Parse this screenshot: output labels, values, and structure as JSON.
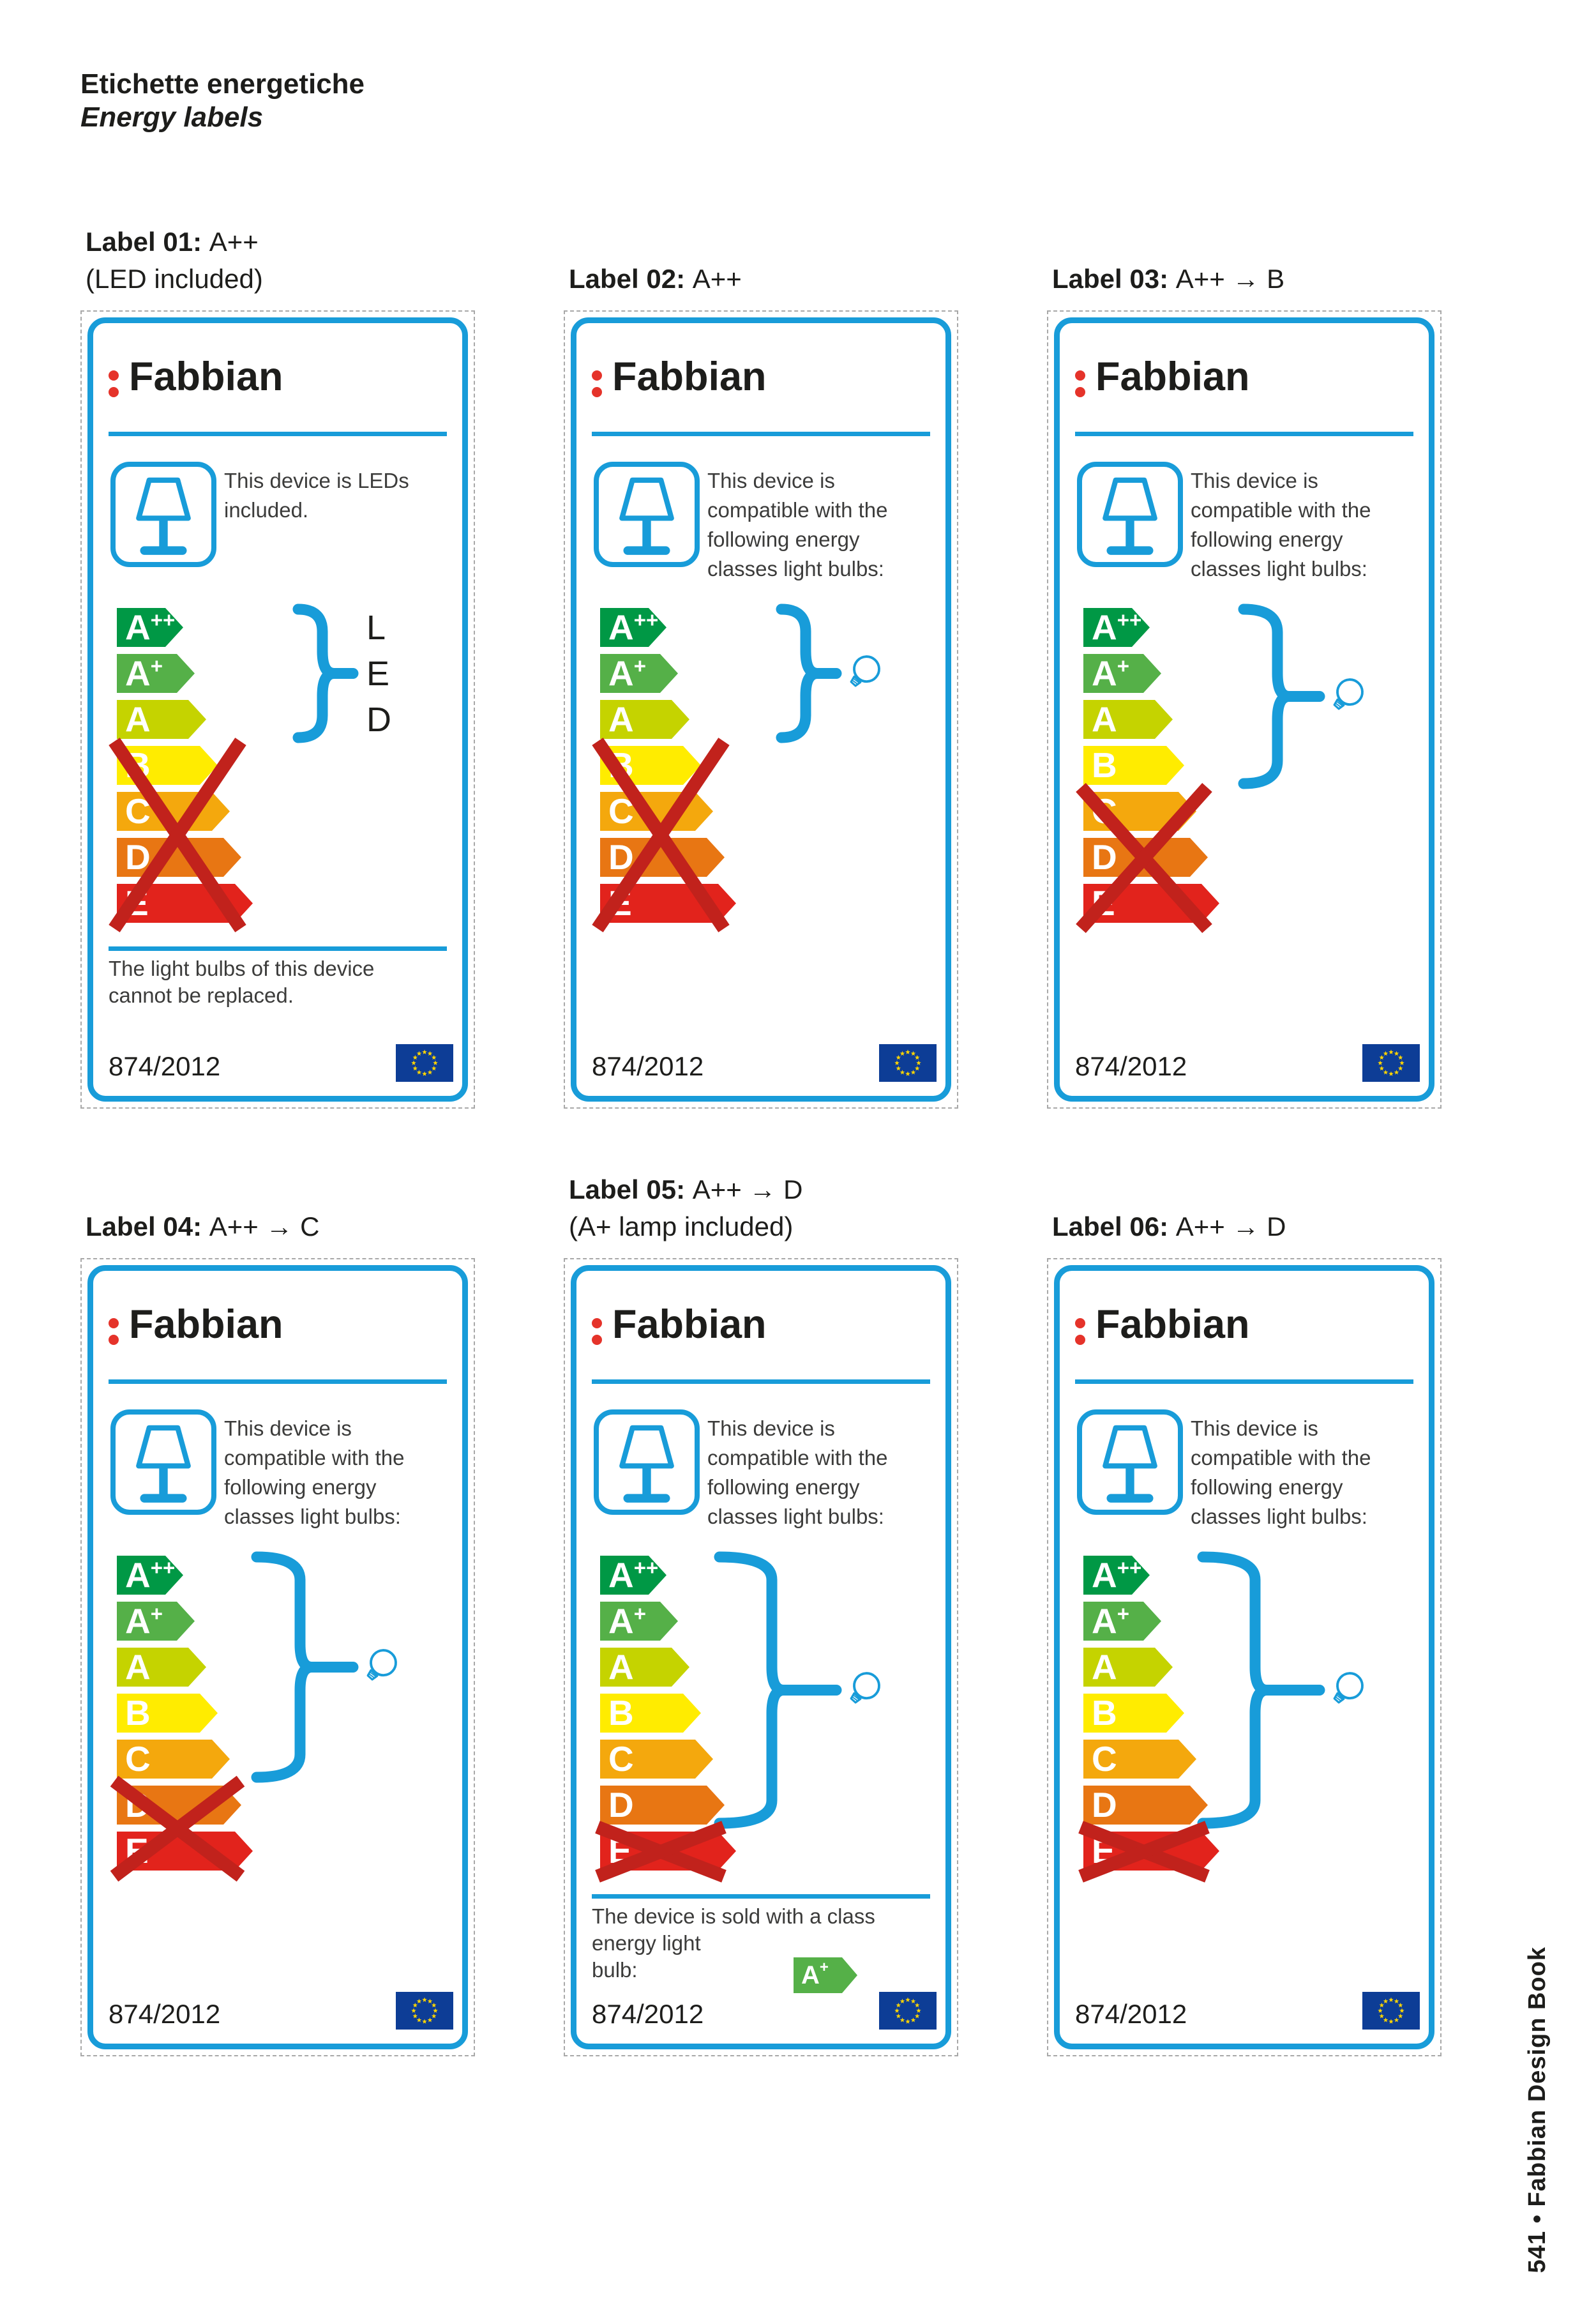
{
  "page": {
    "header_title": "Etichette energetiche",
    "header_subtitle": "Energy labels",
    "footer_vertical": "541 • Fabbian Design Book"
  },
  "brand": {
    "name": "Fabbian"
  },
  "regulation_number": "874/2012",
  "colors": {
    "frame_blue": "#189cd9",
    "brand_dot_red": "#e5332a",
    "cross_red": "#c1221c",
    "text_dark": "#1d1d1b",
    "body_text": "#3c3c3b",
    "eu_flag_blue": "#0d3d96",
    "eu_star_yellow": "#ffd500"
  },
  "energy_classes": [
    {
      "label": "A++",
      "base": "A",
      "sup": "++",
      "color": "#009845"
    },
    {
      "label": "A+",
      "base": "A",
      "sup": "+",
      "color": "#55b048"
    },
    {
      "label": "A",
      "base": "A",
      "sup": "",
      "color": "#c5d300"
    },
    {
      "label": "B",
      "base": "B",
      "sup": "",
      "color": "#ffec00"
    },
    {
      "label": "C",
      "base": "C",
      "sup": "",
      "color": "#f4a80d"
    },
    {
      "label": "D",
      "base": "D",
      "sup": "",
      "color": "#e87613"
    },
    {
      "label": "E",
      "base": "E",
      "sup": "",
      "color": "#e2231c"
    }
  ],
  "labels": [
    {
      "title_bold": "Label 01:",
      "title_rest": "A++",
      "subtitle": "(LED included)",
      "description_lines": [
        "This device is LEDs",
        "included."
      ],
      "covered_from": 0,
      "covered_to": 2,
      "covered_range": "A++ to A",
      "symbol": "LED",
      "crossed_from": 3,
      "crossed_to": 6,
      "crossed_range": "B to E",
      "note_lines": [
        "The light bulbs of this device",
        "cannot be replaced."
      ],
      "included_bulb": null
    },
    {
      "title_bold": "Label 02:",
      "title_rest": "A++",
      "subtitle": "",
      "description_lines": [
        "This device is",
        "compatible with the",
        "following energy",
        "classes light bulbs:"
      ],
      "covered_from": 0,
      "covered_to": 2,
      "covered_range": "A++ to A",
      "symbol": "bulb",
      "crossed_from": 3,
      "crossed_to": 6,
      "crossed_range": "B to E",
      "note_lines": null,
      "included_bulb": null
    },
    {
      "title_bold": "Label 03:",
      "title_rest": "A++ → B",
      "subtitle": "",
      "description_lines": [
        "This device is",
        "compatible with the",
        "following energy",
        "classes light bulbs:"
      ],
      "covered_from": 0,
      "covered_to": 3,
      "covered_range": "A++ to B",
      "symbol": "bulb",
      "crossed_from": 4,
      "crossed_to": 6,
      "crossed_range": "C to E",
      "note_lines": null,
      "included_bulb": null
    },
    {
      "title_bold": "Label 04:",
      "title_rest": "A++ → C",
      "subtitle": "",
      "description_lines": [
        "This device is",
        "compatible with the",
        "following energy",
        "classes light bulbs:"
      ],
      "covered_from": 0,
      "covered_to": 4,
      "covered_range": "A++ to C",
      "symbol": "bulb",
      "crossed_from": 5,
      "crossed_to": 6,
      "crossed_range": "D to E",
      "note_lines": null,
      "included_bulb": null
    },
    {
      "title_bold": "Label 05:",
      "title_rest": "A++ → D",
      "subtitle": "(A+ lamp included)",
      "description_lines": [
        "This device is",
        "compatible with the",
        "following energy",
        "classes light bulbs:"
      ],
      "covered_from": 0,
      "covered_to": 5,
      "covered_range": "A++ to D",
      "symbol": "bulb",
      "crossed_from": 6,
      "crossed_to": 6,
      "crossed_range": "E",
      "note_lines": [
        "The device is sold with a class",
        "energy light",
        "bulb:"
      ],
      "included_bulb": {
        "base": "A",
        "sup": "+",
        "color": "#55b048"
      }
    },
    {
      "title_bold": "Label 06:",
      "title_rest": "A++ → D",
      "subtitle": "",
      "description_lines": [
        "This device is",
        "compatible with the",
        "following energy",
        "classes light bulbs:"
      ],
      "covered_from": 0,
      "covered_to": 5,
      "covered_range": "A++ to D",
      "symbol": "bulb",
      "crossed_from": 6,
      "crossed_to": 6,
      "crossed_range": "E",
      "note_lines": null,
      "included_bulb": null
    }
  ]
}
